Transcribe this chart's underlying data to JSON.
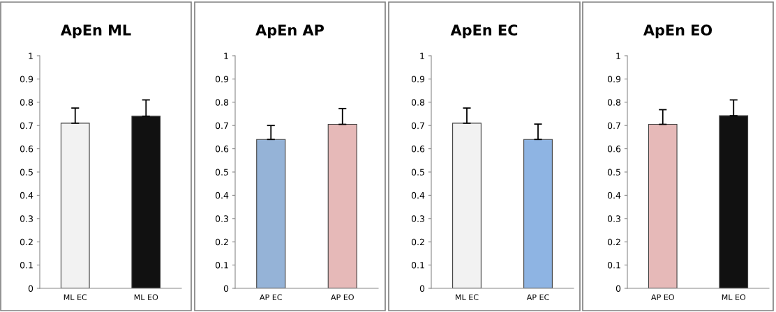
{
  "chart_data": [
    {
      "type": "bar",
      "title": "ApEn ML",
      "categories": [
        "ML EC",
        "ML EO"
      ],
      "values": [
        0.71,
        0.74
      ],
      "colors": [
        "#f2f2f2",
        "#111111"
      ],
      "errors": [
        [
          0.71,
          0.775
        ],
        [
          0.74,
          0.81
        ]
      ],
      "ylim": [
        0,
        1
      ],
      "yticks": [
        0,
        0.1,
        0.2,
        0.3,
        0.4,
        0.5,
        0.6,
        0.7,
        0.8,
        0.9,
        1
      ],
      "grid": false,
      "legend": false
    },
    {
      "type": "bar",
      "title": "ApEn AP",
      "categories": [
        "AP EC",
        "AP EO"
      ],
      "values": [
        0.64,
        0.705
      ],
      "colors": [
        "#95b3d7",
        "#e6b9b8"
      ],
      "errors": [
        [
          0.64,
          0.7
        ],
        [
          0.705,
          0.773
        ]
      ],
      "ylim": [
        0,
        1
      ],
      "yticks": [
        0,
        0.1,
        0.2,
        0.3,
        0.4,
        0.5,
        0.6,
        0.7,
        0.8,
        0.9,
        1
      ],
      "grid": false,
      "legend": false
    },
    {
      "type": "bar",
      "title": "ApEn EC",
      "categories": [
        "ML EC",
        "AP EC"
      ],
      "values": [
        0.71,
        0.64
      ],
      "colors": [
        "#f2f2f2",
        "#8eb4e3"
      ],
      "errors": [
        [
          0.71,
          0.775
        ],
        [
          0.64,
          0.706
        ]
      ],
      "ylim": [
        0,
        1
      ],
      "yticks": [
        0,
        0.1,
        0.2,
        0.3,
        0.4,
        0.5,
        0.6,
        0.7,
        0.8,
        0.9,
        1
      ],
      "grid": false,
      "legend": false
    },
    {
      "type": "bar",
      "title": "ApEn EO",
      "categories": [
        "AP EO",
        "ML EO"
      ],
      "values": [
        0.705,
        0.742
      ],
      "colors": [
        "#e6b9b8",
        "#111111"
      ],
      "errors": [
        [
          0.705,
          0.768
        ],
        [
          0.742,
          0.81
        ]
      ],
      "ylim": [
        0,
        1
      ],
      "yticks": [
        0,
        0.1,
        0.2,
        0.3,
        0.4,
        0.5,
        0.6,
        0.7,
        0.8,
        0.9,
        1
      ],
      "grid": false,
      "legend": false
    }
  ]
}
